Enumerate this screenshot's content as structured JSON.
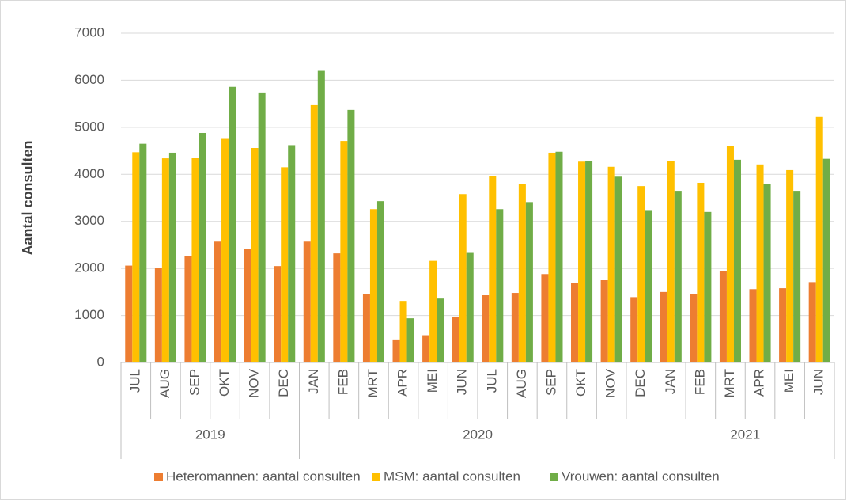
{
  "chart_data": {
    "type": "bar",
    "y_label": "Aantal consulten",
    "groups": [
      {
        "name": "2019",
        "categories": [
          "JUL",
          "AUG",
          "SEP",
          "OKT",
          "NOV",
          "DEC"
        ]
      },
      {
        "name": "2020",
        "categories": [
          "JAN",
          "FEB",
          "MRT",
          "APR",
          "MEI",
          "JUN",
          "JUL",
          "AUG",
          "SEP",
          "OKT",
          "NOV",
          "DEC"
        ]
      },
      {
        "name": "2021",
        "categories": [
          "JAN",
          "FEB",
          "MRT",
          "APR",
          "MEI",
          "JUN"
        ]
      }
    ],
    "series": [
      {
        "name": "Heteromannen: aantal consulten",
        "color": "#ed7d31",
        "values": [
          2060,
          2010,
          2270,
          2570,
          2420,
          2050,
          2570,
          2320,
          1450,
          490,
          580,
          960,
          1430,
          1480,
          1880,
          1690,
          1750,
          1390,
          1500,
          1460,
          1940,
          1560,
          1580,
          1710
        ]
      },
      {
        "name": "MSM: aantal consulten",
        "color": "#ffc000",
        "values": [
          4470,
          4340,
          4350,
          4770,
          4560,
          4150,
          5470,
          4710,
          3260,
          1310,
          2160,
          3580,
          3970,
          3790,
          4460,
          4270,
          4160,
          3750,
          4290,
          3820,
          4600,
          4210,
          4090,
          5220
        ]
      },
      {
        "name": "Vrouwen: aantal consulten",
        "color": "#70ad47",
        "values": [
          4650,
          4460,
          4880,
          5860,
          5740,
          4620,
          6200,
          5370,
          3430,
          940,
          1360,
          2330,
          3260,
          3410,
          4480,
          4290,
          3950,
          3240,
          3650,
          3200,
          4310,
          3800,
          3650,
          4330
        ]
      }
    ],
    "ylim": [
      0,
      7000
    ],
    "yticks": [
      0,
      1000,
      2000,
      3000,
      4000,
      5000,
      6000,
      7000
    ],
    "grid": true,
    "legend": "bottom"
  }
}
